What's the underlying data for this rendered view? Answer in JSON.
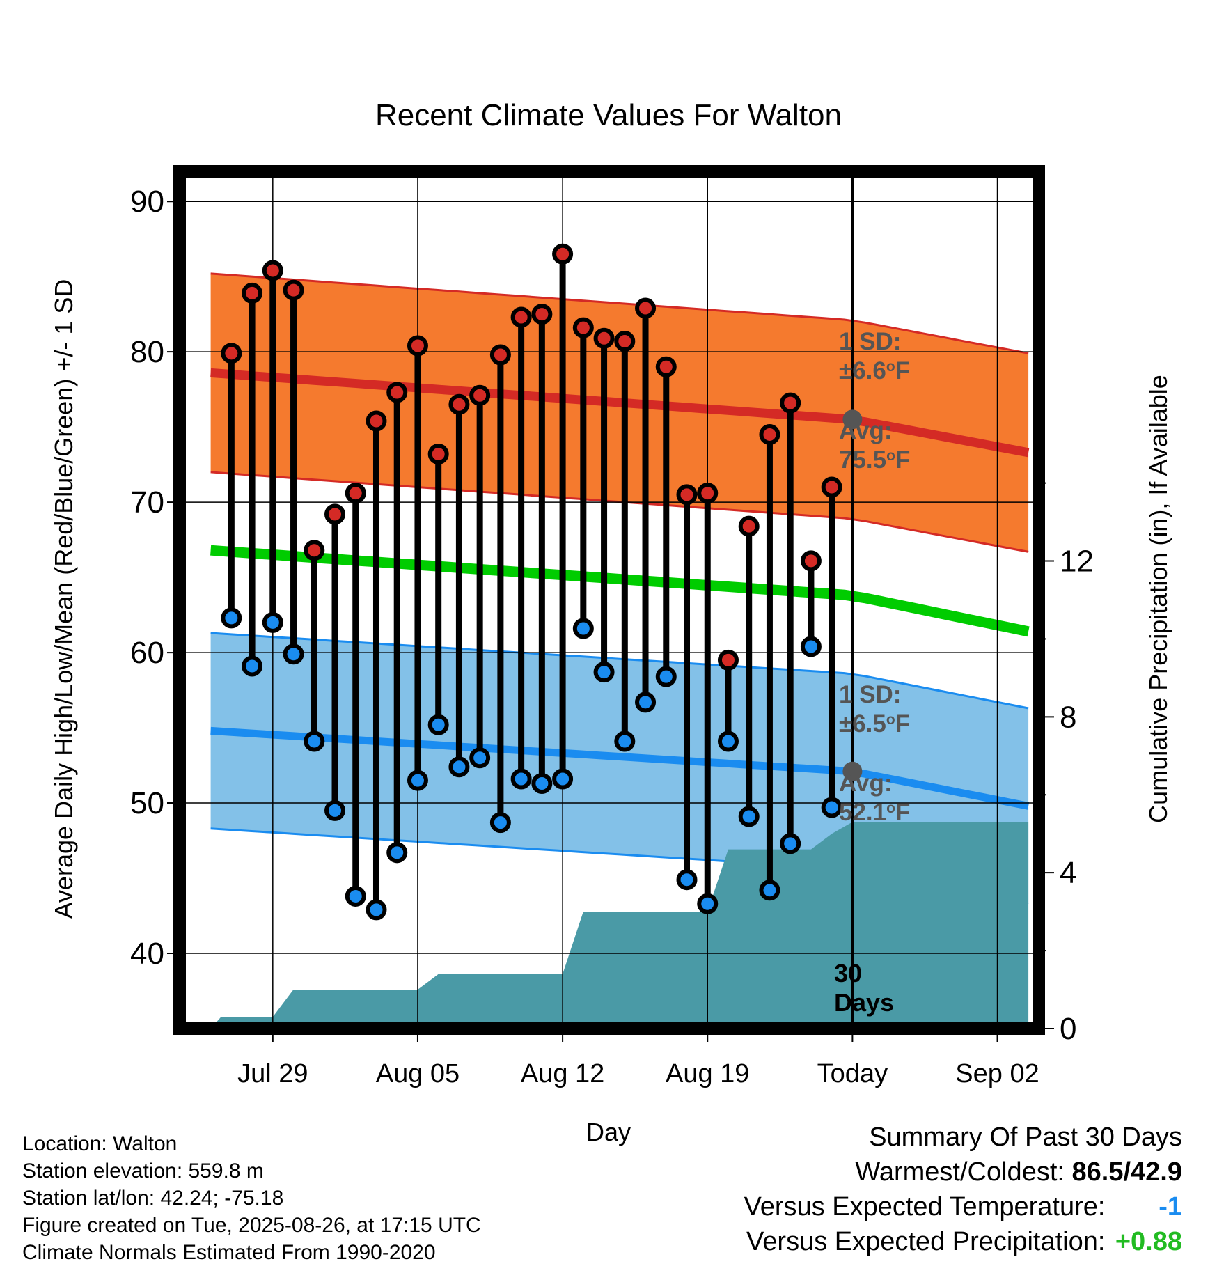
{
  "chart_data": {
    "type": "line",
    "title": "Recent Climate Values For Walton",
    "xlabel": "Day",
    "ylabel": "Average Daily High/Low/Mean (Red/Blue/Green) +/- 1 SD",
    "y2label": "Cumulative Precipitation (in), If Available",
    "ylim": [
      35,
      92
    ],
    "y2lim": [
      0,
      22
    ],
    "yticks": [
      40,
      50,
      60,
      70,
      80,
      90
    ],
    "y2ticks": [
      0,
      4,
      8,
      12
    ],
    "xlim": [
      -4.5,
      37
    ],
    "xticks": [
      {
        "day": 0,
        "label": "Jul 29"
      },
      {
        "day": 7,
        "label": "Aug 05"
      },
      {
        "day": 14,
        "label": "Aug 12"
      },
      {
        "day": 21,
        "label": "Aug 19"
      },
      {
        "day": 28,
        "label": "Today"
      },
      {
        "day": 35,
        "label": "Sep 02"
      }
    ],
    "grid": true,
    "days": [
      -2,
      -1,
      0,
      1,
      2,
      3,
      4,
      5,
      6,
      7,
      8,
      9,
      10,
      11,
      12,
      13,
      14,
      15,
      16,
      17,
      18,
      19,
      20,
      21,
      22,
      23,
      24,
      25,
      26,
      27
    ],
    "highs": [
      79.9,
      83.9,
      85.4,
      84.1,
      66.8,
      69.2,
      70.6,
      75.4,
      77.3,
      80.4,
      73.2,
      76.5,
      77.1,
      79.8,
      82.3,
      82.5,
      86.5,
      81.6,
      80.9,
      80.7,
      82.9,
      79.0,
      70.5,
      70.6,
      59.5,
      68.4,
      74.5,
      76.6,
      66.1,
      71.0
    ],
    "lows": [
      62.3,
      59.1,
      62.0,
      59.9,
      54.1,
      49.5,
      43.8,
      42.9,
      46.7,
      51.5,
      55.2,
      52.4,
      53.0,
      48.7,
      51.6,
      51.3,
      51.6,
      61.6,
      58.7,
      54.1,
      56.7,
      58.4,
      44.9,
      43.3,
      54.1,
      49.1,
      44.2,
      47.3,
      60.4,
      49.7
    ],
    "normal_high": {
      "x": [
        -3,
        28,
        36.5
      ],
      "y": [
        78.6,
        75.5,
        73.3
      ]
    },
    "normal_high_sd": 6.6,
    "normal_mean": {
      "x": [
        -3,
        28,
        36.5
      ],
      "y": [
        66.8,
        63.8,
        61.4
      ]
    },
    "normal_low": {
      "x": [
        -3,
        28,
        36.5
      ],
      "y": [
        54.8,
        52.1,
        49.8
      ]
    },
    "normal_low_sd": 6.5,
    "precip": {
      "x": [
        -3,
        -2.5,
        0,
        1,
        2,
        7,
        8,
        9,
        14,
        15,
        21,
        22,
        26,
        27,
        28,
        36.5
      ],
      "y": [
        0,
        0.3,
        0.3,
        1.0,
        1.0,
        1.0,
        1.4,
        1.4,
        1.4,
        3.0,
        3.0,
        4.6,
        4.6,
        5.0,
        5.3,
        5.3
      ]
    },
    "annotations": {
      "high_sd_line1": "1 SD:",
      "high_sd_line2": "±6.6",
      "high_avg_line1": "Avg:",
      "high_avg_line2": "75.5",
      "low_sd_line1": "1 SD:",
      "low_sd_line2": "±6.5",
      "low_avg_line1": "Avg:",
      "low_avg_line2": "52.1",
      "degree": "o",
      "unit": "F",
      "days_line1": "30",
      "days_line2": "Days"
    },
    "colors": {
      "high_band": "#f57a2e",
      "high_line": "#d42a25",
      "mean_line": "#00cc00",
      "low_band": "#83c1e8",
      "low_line": "#1a8cf0",
      "precip": "#4a9aa6",
      "high_dot": "#d42a25",
      "low_dot": "#1a8cf0",
      "today_marker": "#555555"
    }
  },
  "info": {
    "location": "Location: Walton",
    "elevation": "Station elevation: 559.8 m",
    "latlon": "Station lat/lon: 42.24; -75.18",
    "created": "Figure created on Tue, 2025-08-26, at 17:15 UTC",
    "normals": "Climate Normals Estimated From 1990-2020"
  },
  "summary": {
    "title": "Summary Of Past 30 Days",
    "warmest_label": "Warmest/Coldest:",
    "warmest_value": "86.5/42.9",
    "temp_label": "Versus Expected Temperature:",
    "temp_value": "-1",
    "temp_color": "#1a8cf0",
    "precip_label": "Versus Expected Precipitation:",
    "precip_value": "+0.88",
    "precip_color": "#22bb22"
  }
}
